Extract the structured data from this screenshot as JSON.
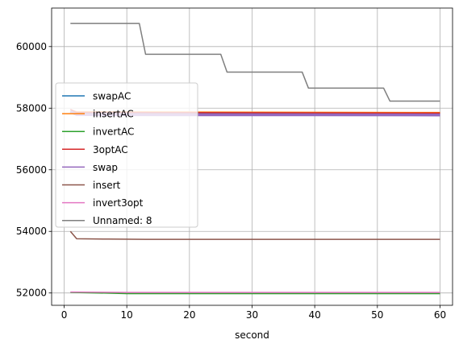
{
  "chart_data": {
    "type": "line",
    "xlabel": "second",
    "ylabel": "",
    "title": "",
    "xlim": [
      -2,
      62
    ],
    "ylim": [
      51600,
      61250
    ],
    "xticks": [
      0,
      10,
      20,
      30,
      40,
      50,
      60
    ],
    "yticks": [
      52000,
      54000,
      56000,
      58000,
      60000
    ],
    "xtick_labels": [
      "0",
      "10",
      "20",
      "30",
      "40",
      "50",
      "60"
    ],
    "ytick_labels": [
      "52000",
      "54000",
      "56000",
      "58000",
      "60000"
    ],
    "grid": true,
    "legend_position": "center-left",
    "series": [
      {
        "name": "swapAC",
        "color": "#1f77b4",
        "x": [
          1,
          2,
          60
        ],
        "y": [
          57900,
          57820,
          57800
        ]
      },
      {
        "name": "insertAC",
        "color": "#ff7f0e",
        "x": [
          1,
          2,
          60
        ],
        "y": [
          57950,
          57880,
          57860
        ]
      },
      {
        "name": "invertAC",
        "color": "#2ca02c",
        "x": [
          1,
          10,
          60
        ],
        "y": [
          52020,
          51980,
          51980
        ]
      },
      {
        "name": "3optAC",
        "color": "#d62728",
        "x": [
          1,
          2,
          60
        ],
        "y": [
          57960,
          57860,
          57840
        ]
      },
      {
        "name": "swap",
        "color": "#9467bd",
        "x": [
          1,
          2,
          60
        ],
        "y": [
          57880,
          57790,
          57780
        ]
      },
      {
        "name": "insert",
        "color": "#8c564b",
        "x": [
          1,
          2,
          7,
          13,
          60
        ],
        "y": [
          54000,
          53760,
          53750,
          53740,
          53740
        ]
      },
      {
        "name": "invert3opt",
        "color": "#e377c2",
        "x": [
          1,
          10,
          60
        ],
        "y": [
          52030,
          52020,
          52020
        ]
      },
      {
        "name": "Unnamed: 8",
        "color": "#7f7f7f",
        "x": [
          1,
          12,
          13,
          25,
          26,
          38,
          39,
          51,
          52,
          60
        ],
        "y": [
          60750,
          60750,
          59750,
          59750,
          59170,
          59170,
          58650,
          58650,
          58230,
          58230
        ]
      }
    ]
  }
}
